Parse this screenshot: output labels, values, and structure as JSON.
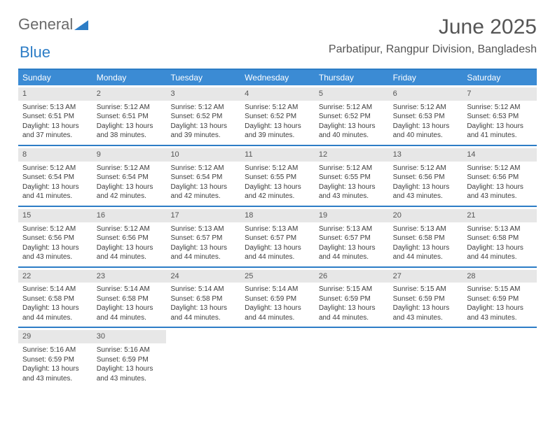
{
  "logo": {
    "text_a": "General",
    "text_b": "Blue"
  },
  "title": "June 2025",
  "location": "Parbatipur, Rangpur Division, Bangladesh",
  "theme": {
    "accent": "#3b8bd4",
    "accent_border": "#2d7dc6",
    "daynum_bg": "#e7e7e7",
    "text": "#4a4a4a",
    "header_text": "#ffffff"
  },
  "day_names": [
    "Sunday",
    "Monday",
    "Tuesday",
    "Wednesday",
    "Thursday",
    "Friday",
    "Saturday"
  ],
  "weeks": [
    [
      {
        "n": "1",
        "sr": "5:13 AM",
        "ss": "6:51 PM",
        "dl": "13 hours and 37 minutes."
      },
      {
        "n": "2",
        "sr": "5:12 AM",
        "ss": "6:51 PM",
        "dl": "13 hours and 38 minutes."
      },
      {
        "n": "3",
        "sr": "5:12 AM",
        "ss": "6:52 PM",
        "dl": "13 hours and 39 minutes."
      },
      {
        "n": "4",
        "sr": "5:12 AM",
        "ss": "6:52 PM",
        "dl": "13 hours and 39 minutes."
      },
      {
        "n": "5",
        "sr": "5:12 AM",
        "ss": "6:52 PM",
        "dl": "13 hours and 40 minutes."
      },
      {
        "n": "6",
        "sr": "5:12 AM",
        "ss": "6:53 PM",
        "dl": "13 hours and 40 minutes."
      },
      {
        "n": "7",
        "sr": "5:12 AM",
        "ss": "6:53 PM",
        "dl": "13 hours and 41 minutes."
      }
    ],
    [
      {
        "n": "8",
        "sr": "5:12 AM",
        "ss": "6:54 PM",
        "dl": "13 hours and 41 minutes."
      },
      {
        "n": "9",
        "sr": "5:12 AM",
        "ss": "6:54 PM",
        "dl": "13 hours and 42 minutes."
      },
      {
        "n": "10",
        "sr": "5:12 AM",
        "ss": "6:54 PM",
        "dl": "13 hours and 42 minutes."
      },
      {
        "n": "11",
        "sr": "5:12 AM",
        "ss": "6:55 PM",
        "dl": "13 hours and 42 minutes."
      },
      {
        "n": "12",
        "sr": "5:12 AM",
        "ss": "6:55 PM",
        "dl": "13 hours and 43 minutes."
      },
      {
        "n": "13",
        "sr": "5:12 AM",
        "ss": "6:56 PM",
        "dl": "13 hours and 43 minutes."
      },
      {
        "n": "14",
        "sr": "5:12 AM",
        "ss": "6:56 PM",
        "dl": "13 hours and 43 minutes."
      }
    ],
    [
      {
        "n": "15",
        "sr": "5:12 AM",
        "ss": "6:56 PM",
        "dl": "13 hours and 43 minutes."
      },
      {
        "n": "16",
        "sr": "5:12 AM",
        "ss": "6:56 PM",
        "dl": "13 hours and 44 minutes."
      },
      {
        "n": "17",
        "sr": "5:13 AM",
        "ss": "6:57 PM",
        "dl": "13 hours and 44 minutes."
      },
      {
        "n": "18",
        "sr": "5:13 AM",
        "ss": "6:57 PM",
        "dl": "13 hours and 44 minutes."
      },
      {
        "n": "19",
        "sr": "5:13 AM",
        "ss": "6:57 PM",
        "dl": "13 hours and 44 minutes."
      },
      {
        "n": "20",
        "sr": "5:13 AM",
        "ss": "6:58 PM",
        "dl": "13 hours and 44 minutes."
      },
      {
        "n": "21",
        "sr": "5:13 AM",
        "ss": "6:58 PM",
        "dl": "13 hours and 44 minutes."
      }
    ],
    [
      {
        "n": "22",
        "sr": "5:14 AM",
        "ss": "6:58 PM",
        "dl": "13 hours and 44 minutes."
      },
      {
        "n": "23",
        "sr": "5:14 AM",
        "ss": "6:58 PM",
        "dl": "13 hours and 44 minutes."
      },
      {
        "n": "24",
        "sr": "5:14 AM",
        "ss": "6:58 PM",
        "dl": "13 hours and 44 minutes."
      },
      {
        "n": "25",
        "sr": "5:14 AM",
        "ss": "6:59 PM",
        "dl": "13 hours and 44 minutes."
      },
      {
        "n": "26",
        "sr": "5:15 AM",
        "ss": "6:59 PM",
        "dl": "13 hours and 44 minutes."
      },
      {
        "n": "27",
        "sr": "5:15 AM",
        "ss": "6:59 PM",
        "dl": "13 hours and 43 minutes."
      },
      {
        "n": "28",
        "sr": "5:15 AM",
        "ss": "6:59 PM",
        "dl": "13 hours and 43 minutes."
      }
    ],
    [
      {
        "n": "29",
        "sr": "5:16 AM",
        "ss": "6:59 PM",
        "dl": "13 hours and 43 minutes."
      },
      {
        "n": "30",
        "sr": "5:16 AM",
        "ss": "6:59 PM",
        "dl": "13 hours and 43 minutes."
      },
      null,
      null,
      null,
      null,
      null
    ]
  ],
  "labels": {
    "sunrise": "Sunrise: ",
    "sunset": "Sunset: ",
    "daylight": "Daylight: "
  }
}
